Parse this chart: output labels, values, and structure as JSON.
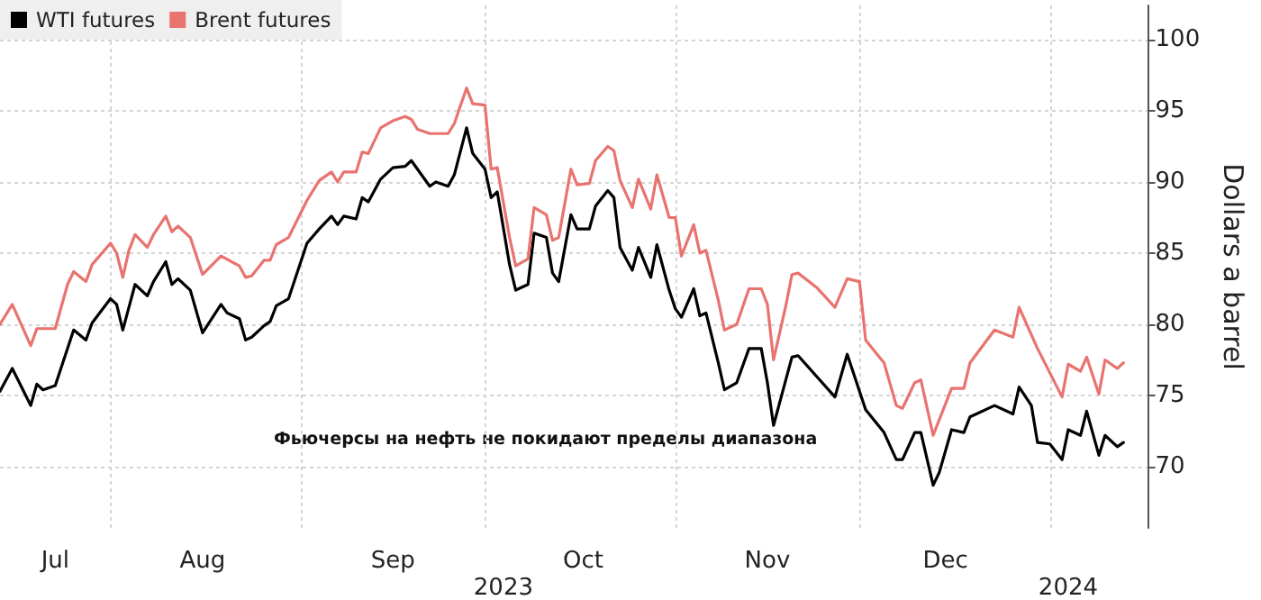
{
  "chart_data": {
    "type": "line",
    "ylabel": "Dollars a barrel",
    "annotations": [
      "Фьючерсы на нефть не покидают пределы диапазона"
    ],
    "xlim": [
      "2023-07-14",
      "2024-01-17"
    ],
    "ylim": [
      65.7,
      102.4
    ],
    "yticks": [
      70,
      75,
      80,
      85,
      90,
      95,
      100
    ],
    "xticks": [
      {
        "value": "2023-07-23",
        "label": "Jul"
      },
      {
        "value": "2023-08-01",
        "label": null
      },
      {
        "value": "2023-08-16",
        "label": "Aug"
      },
      {
        "value": "2023-09-01",
        "label": null
      },
      {
        "value": "2023-09-16",
        "label": "Sep"
      },
      {
        "value": "2023-10-01",
        "label": null
      },
      {
        "value": "2023-10-17",
        "label": "Oct"
      },
      {
        "value": "2023-11-01",
        "label": null
      },
      {
        "value": "2023-11-16",
        "label": "Nov"
      },
      {
        "value": "2023-12-01",
        "label": null
      },
      {
        "value": "2023-12-15",
        "label": "Dec"
      },
      {
        "value": "2024-01-01",
        "label": null
      }
    ],
    "x2lim": [
      "2023-07-14",
      "2024-01-17"
    ],
    "x2ticks": [
      {
        "value": "2023-10-04",
        "label": "2023"
      },
      {
        "value": "2024-01-04",
        "label": "2024"
      }
    ],
    "grid": true,
    "legend": "top left",
    "marker": "none",
    "line_style": "solid",
    "series": [
      {
        "name": "WTI futures",
        "color": "#000000",
        "x": [
          "2023-07-14",
          "2023-07-16",
          "2023-07-19",
          "2023-07-20",
          "2023-07-21",
          "2023-07-23",
          "2023-07-26",
          "2023-07-28",
          "2023-07-29",
          "2023-08-01",
          "2023-08-02",
          "2023-08-03",
          "2023-08-05",
          "2023-08-07",
          "2023-08-08",
          "2023-08-10",
          "2023-08-11",
          "2023-08-12",
          "2023-08-14",
          "2023-08-16",
          "2023-08-19",
          "2023-08-20",
          "2023-08-22",
          "2023-08-23",
          "2023-08-24",
          "2023-08-26",
          "2023-08-27",
          "2023-08-28",
          "2023-08-30",
          "2023-09-02",
          "2023-09-04",
          "2023-09-06",
          "2023-09-07",
          "2023-09-08",
          "2023-09-10",
          "2023-09-11",
          "2023-09-12",
          "2023-09-14",
          "2023-09-16",
          "2023-09-18",
          "2023-09-19",
          "2023-09-22",
          "2023-09-23",
          "2023-09-25",
          "2023-09-26",
          "2023-09-28",
          "2023-09-29",
          "2023-10-01",
          "2023-10-02",
          "2023-10-03",
          "2023-10-05",
          "2023-10-06",
          "2023-10-08",
          "2023-10-09",
          "2023-10-11",
          "2023-10-12",
          "2023-10-13",
          "2023-10-15",
          "2023-10-16",
          "2023-10-18",
          "2023-10-19",
          "2023-10-21",
          "2023-10-22",
          "2023-10-23",
          "2023-10-25",
          "2023-10-26",
          "2023-10-28",
          "2023-10-29",
          "2023-10-31",
          "2023-11-01",
          "2023-11-02",
          "2023-11-04",
          "2023-11-05",
          "2023-11-06",
          "2023-11-08",
          "2023-11-09",
          "2023-11-11",
          "2023-11-13",
          "2023-11-15",
          "2023-11-16",
          "2023-11-17",
          "2023-11-19",
          "2023-11-20",
          "2023-11-21",
          "2023-11-27",
          "2023-11-29",
          "2023-12-02",
          "2023-12-05",
          "2023-12-07",
          "2023-12-08",
          "2023-12-10",
          "2023-12-11",
          "2023-12-13",
          "2023-12-14",
          "2023-12-16",
          "2023-12-18",
          "2023-12-19",
          "2023-12-23",
          "2023-12-26",
          "2023-12-27",
          "2023-12-29",
          "2023-12-30",
          "2024-01-01",
          "2024-01-03",
          "2024-01-04",
          "2024-01-06",
          "2024-01-07",
          "2024-01-09",
          "2024-01-10",
          "2024-01-12",
          "2024-01-13"
        ],
        "values": [
          75.3,
          76.9,
          74.3,
          75.8,
          75.4,
          75.7,
          79.6,
          78.9,
          80.1,
          81.8,
          81.4,
          79.6,
          82.8,
          82.0,
          83.0,
          84.4,
          82.8,
          83.2,
          82.4,
          79.4,
          81.4,
          80.8,
          80.4,
          78.9,
          79.1,
          79.9,
          80.2,
          81.3,
          81.8,
          85.7,
          86.7,
          87.6,
          87.0,
          87.6,
          87.4,
          88.9,
          88.6,
          90.2,
          91.0,
          91.1,
          91.5,
          89.7,
          90.0,
          89.7,
          90.5,
          93.8,
          92.0,
          90.9,
          88.9,
          89.3,
          84.2,
          82.4,
          82.8,
          86.4,
          86.1,
          83.6,
          83.0,
          87.7,
          86.7,
          86.7,
          88.3,
          89.4,
          88.9,
          85.4,
          83.8,
          85.4,
          83.3,
          85.6,
          82.4,
          81.1,
          80.5,
          82.5,
          80.6,
          80.8,
          77.3,
          75.4,
          75.9,
          78.3,
          78.3,
          75.9,
          72.9,
          76.1,
          77.7,
          77.8,
          74.9,
          77.9,
          74.0,
          72.4,
          70.5,
          70.5,
          72.4,
          72.4,
          68.7,
          69.6,
          72.6,
          72.4,
          73.5,
          74.3,
          73.7,
          75.6,
          74.3,
          71.7,
          71.6,
          70.5,
          72.6,
          72.2,
          73.9,
          70.8,
          72.2,
          71.4,
          71.7
        ]
      },
      {
        "name": "Brent futures",
        "color": "#e8736f",
        "x": [
          "2023-07-14",
          "2023-07-16",
          "2023-07-19",
          "2023-07-20",
          "2023-07-23",
          "2023-07-25",
          "2023-07-26",
          "2023-07-28",
          "2023-07-29",
          "2023-08-01",
          "2023-08-02",
          "2023-08-03",
          "2023-08-04",
          "2023-08-05",
          "2023-08-07",
          "2023-08-08",
          "2023-08-10",
          "2023-08-11",
          "2023-08-12",
          "2023-08-14",
          "2023-08-16",
          "2023-08-19",
          "2023-08-22",
          "2023-08-23",
          "2023-08-24",
          "2023-08-26",
          "2023-08-27",
          "2023-08-28",
          "2023-08-30",
          "2023-09-02",
          "2023-09-04",
          "2023-09-06",
          "2023-09-07",
          "2023-09-08",
          "2023-09-10",
          "2023-09-11",
          "2023-09-12",
          "2023-09-14",
          "2023-09-16",
          "2023-09-18",
          "2023-09-19",
          "2023-09-20",
          "2023-09-22",
          "2023-09-25",
          "2023-09-26",
          "2023-09-28",
          "2023-09-29",
          "2023-10-01",
          "2023-10-02",
          "2023-10-03",
          "2023-10-05",
          "2023-10-06",
          "2023-10-08",
          "2023-10-09",
          "2023-10-11",
          "2023-10-12",
          "2023-10-13",
          "2023-10-15",
          "2023-10-16",
          "2023-10-18",
          "2023-10-19",
          "2023-10-21",
          "2023-10-22",
          "2023-10-23",
          "2023-10-25",
          "2023-10-26",
          "2023-10-28",
          "2023-10-29",
          "2023-10-31",
          "2023-11-01",
          "2023-11-02",
          "2023-11-04",
          "2023-11-05",
          "2023-11-06",
          "2023-11-08",
          "2023-11-09",
          "2023-11-11",
          "2023-11-13",
          "2023-11-15",
          "2023-11-16",
          "2023-11-17",
          "2023-11-19",
          "2023-11-20",
          "2023-11-21",
          "2023-11-24",
          "2023-11-27",
          "2023-11-29",
          "2023-12-01",
          "2023-12-02",
          "2023-12-05",
          "2023-12-07",
          "2023-12-08",
          "2023-12-10",
          "2023-12-11",
          "2023-12-13",
          "2023-12-14",
          "2023-12-16",
          "2023-12-18",
          "2023-12-19",
          "2023-12-23",
          "2023-12-26",
          "2023-12-27",
          "2023-12-30",
          "2024-01-03",
          "2024-01-04",
          "2024-01-06",
          "2024-01-07",
          "2024-01-09",
          "2024-01-10",
          "2024-01-12",
          "2024-01-13"
        ],
        "values": [
          80.0,
          81.4,
          78.5,
          79.7,
          79.7,
          82.8,
          83.7,
          83.0,
          84.2,
          85.7,
          85.0,
          83.3,
          85.2,
          86.3,
          85.4,
          86.3,
          87.6,
          86.5,
          86.9,
          86.1,
          83.5,
          84.8,
          84.1,
          83.3,
          83.4,
          84.5,
          84.5,
          85.6,
          86.1,
          88.7,
          90.1,
          90.7,
          90.0,
          90.7,
          90.7,
          92.1,
          92.0,
          93.8,
          94.3,
          94.6,
          94.4,
          93.7,
          93.4,
          93.4,
          94.1,
          96.6,
          95.5,
          95.4,
          90.9,
          91.0,
          86.1,
          84.1,
          84.6,
          88.2,
          87.7,
          85.9,
          86.1,
          90.9,
          89.8,
          89.9,
          91.5,
          92.5,
          92.2,
          90.1,
          88.2,
          90.2,
          88.1,
          90.5,
          87.5,
          87.5,
          84.8,
          87.0,
          85.0,
          85.2,
          81.7,
          79.6,
          80.0,
          82.5,
          82.5,
          81.4,
          77.5,
          81.3,
          83.5,
          83.6,
          82.6,
          81.2,
          83.2,
          83.0,
          78.9,
          77.3,
          74.3,
          74.1,
          75.9,
          76.1,
          72.2,
          73.3,
          75.5,
          75.5,
          77.3,
          79.6,
          79.1,
          81.2,
          78.3,
          74.9,
          77.2,
          76.7,
          77.7,
          75.1,
          77.5,
          76.9,
          77.3
        ]
      }
    ]
  }
}
